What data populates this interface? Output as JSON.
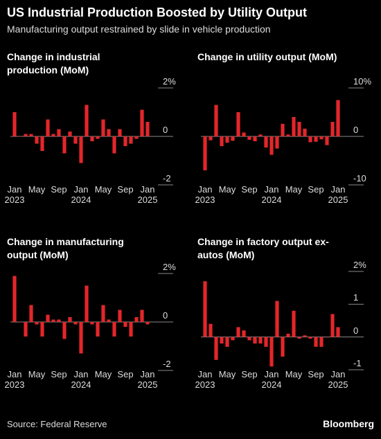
{
  "title": "US Industrial Production Boosted by Utility Output",
  "subtitle": "Manufacturing output restrained by slide in vehicle production",
  "source": "Source: Federal Reserve",
  "brand": "Bloomberg",
  "chart_data": [
    {
      "type": "bar",
      "title": "Change in industrial production (MoM)",
      "color": "#e3262a",
      "categories": [
        "Jan 2023",
        null,
        null,
        null,
        "May",
        null,
        null,
        null,
        "Sep",
        null,
        null,
        null,
        "Jan 2024",
        null,
        null,
        null,
        "May",
        null,
        null,
        null,
        "Sep",
        null,
        null,
        null,
        "Jan 2025"
      ],
      "values": [
        1.0,
        0.0,
        0.1,
        0.1,
        -0.3,
        -0.6,
        0.7,
        0.1,
        0.3,
        -0.7,
        0.2,
        -0.3,
        -1.1,
        1.3,
        -0.2,
        -0.1,
        0.7,
        0.3,
        -0.7,
        0.3,
        -0.4,
        -0.3,
        -0.1,
        1.1,
        0.6
      ],
      "ylim": [
        -2,
        2
      ],
      "yticks": [
        {
          "value": 2,
          "label": "2%"
        },
        0,
        -2
      ]
    },
    {
      "type": "bar",
      "title": "Change in utility output (MoM)",
      "color": "#e3262a",
      "categories": [
        "Jan 2023",
        null,
        null,
        null,
        "May",
        null,
        null,
        null,
        "Sep",
        null,
        null,
        null,
        "Jan 2024",
        null,
        null,
        null,
        "May",
        null,
        null,
        null,
        "Sep",
        null,
        null,
        null,
        "Jan 2025"
      ],
      "values": [
        -7.0,
        -0.8,
        6.5,
        -2.0,
        -1.3,
        -0.9,
        5.0,
        0.8,
        -0.7,
        -1.0,
        0.4,
        -2.3,
        -3.8,
        -2.5,
        2.6,
        0.4,
        4.0,
        3.0,
        1.6,
        -1.2,
        -1.1,
        -0.6,
        -1.8,
        3.0,
        7.5
      ],
      "ylim": [
        -10,
        10
      ],
      "yticks": [
        {
          "value": 10,
          "label": "10%"
        },
        0,
        -10
      ]
    },
    {
      "type": "bar",
      "title": "Change in manufacturing output (MoM)",
      "color": "#e3262a",
      "categories": [
        "Jan 2023",
        null,
        null,
        null,
        "May",
        null,
        null,
        null,
        "Sep",
        null,
        null,
        null,
        "Jan 2024",
        null,
        null,
        null,
        "May",
        null,
        null,
        null,
        "Sep",
        null,
        null,
        null,
        "Jan 2025"
      ],
      "values": [
        1.9,
        0.0,
        -0.6,
        0.7,
        -0.1,
        -0.6,
        0.3,
        0.1,
        0.1,
        -0.7,
        0.2,
        -0.1,
        -1.3,
        1.5,
        -0.1,
        -0.6,
        0.7,
        0.1,
        -0.6,
        0.5,
        -0.2,
        -0.6,
        0.2,
        0.5,
        -0.1
      ],
      "ylim": [
        -2,
        2
      ],
      "yticks": [
        {
          "value": 2,
          "label": "2%"
        },
        0,
        -2
      ]
    },
    {
      "type": "bar",
      "title": "Change in factory output ex-autos (MoM)",
      "color": "#e3262a",
      "categories": [
        "Jan 2023",
        null,
        null,
        null,
        "May",
        null,
        null,
        null,
        "Sep",
        null,
        null,
        null,
        "Jan 2024",
        null,
        null,
        null,
        "May",
        null,
        null,
        null,
        "Sep",
        null,
        null,
        null,
        "Jan 2025"
      ],
      "values": [
        1.7,
        0.4,
        -0.7,
        -0.2,
        -0.3,
        -0.1,
        0.3,
        0.2,
        -0.1,
        -0.2,
        -0.2,
        -0.3,
        -0.9,
        1.1,
        -0.6,
        0.1,
        0.8,
        -0.05,
        0.05,
        -0.05,
        -0.3,
        -0.3,
        0.0,
        0.7,
        0.3
      ],
      "ylim": [
        -1,
        2
      ],
      "yticks": [
        {
          "value": 2,
          "label": "2%"
        },
        1,
        0,
        -1
      ]
    }
  ]
}
